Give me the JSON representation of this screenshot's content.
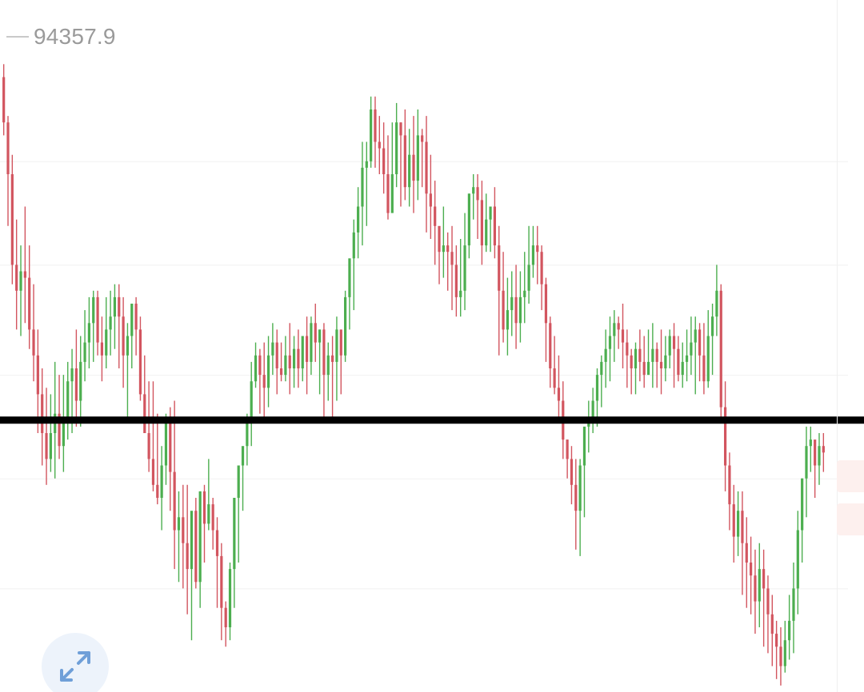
{
  "legend": {
    "value": "94357.9",
    "swatch_color": "#c9c9c9"
  },
  "colors": {
    "up": "#4cae4f",
    "down": "#d2555f",
    "grid": "#f1f1f1",
    "annotation_line": "#000000",
    "expand_button_bg": "#edf3fb",
    "expand_icon": "#6f9fd8"
  },
  "expand_button": {
    "icon": "expand-arrows-icon"
  },
  "chart_data": {
    "type": "candlestick",
    "title": "",
    "xlabel": "",
    "ylabel": "",
    "grid": true,
    "legend_position": "top-left",
    "ylim": [
      0,
      100
    ],
    "annotation": {
      "type": "horizontal-line",
      "y": 42
    },
    "candles": [
      [
        95,
        88,
        97,
        86
      ],
      [
        88,
        80,
        89,
        72
      ],
      [
        80,
        66,
        83,
        63
      ],
      [
        66,
        62,
        73,
        56
      ],
      [
        62,
        65,
        69,
        55
      ],
      [
        65,
        64,
        75,
        57
      ],
      [
        64,
        56,
        69,
        53
      ],
      [
        56,
        52,
        63,
        48
      ],
      [
        52,
        46,
        56,
        40
      ],
      [
        46,
        40,
        50,
        35
      ],
      [
        40,
        36,
        47,
        32
      ],
      [
        36,
        40,
        46,
        34
      ],
      [
        40,
        43,
        51,
        33
      ],
      [
        43,
        38,
        49,
        36
      ],
      [
        38,
        42,
        49,
        34
      ],
      [
        42,
        48,
        51,
        39
      ],
      [
        48,
        50,
        53,
        40
      ],
      [
        50,
        45,
        56,
        41
      ],
      [
        45,
        51,
        55,
        41
      ],
      [
        51,
        54,
        59,
        48
      ],
      [
        54,
        57,
        61,
        50
      ],
      [
        57,
        61,
        62,
        51
      ],
      [
        61,
        54,
        62,
        52
      ],
      [
        54,
        52,
        58,
        48
      ],
      [
        52,
        56,
        61,
        50
      ],
      [
        56,
        58,
        62,
        52
      ],
      [
        58,
        61,
        63,
        53
      ],
      [
        61,
        58,
        63,
        50
      ],
      [
        58,
        52,
        61,
        47
      ],
      [
        52,
        55,
        57,
        42
      ],
      [
        55,
        60,
        60,
        50
      ],
      [
        60,
        56,
        61,
        52
      ],
      [
        56,
        46,
        58,
        45
      ],
      [
        46,
        40,
        52,
        42
      ],
      [
        40,
        36,
        48,
        34
      ],
      [
        36,
        32,
        48,
        31
      ],
      [
        32,
        30,
        43,
        29
      ],
      [
        30,
        35,
        38,
        25
      ],
      [
        35,
        42,
        43,
        32
      ],
      [
        42,
        34,
        44,
        28
      ],
      [
        34,
        25,
        45,
        19
      ],
      [
        25,
        27,
        31,
        17
      ],
      [
        27,
        23,
        32,
        16
      ],
      [
        23,
        19,
        32,
        12
      ],
      [
        19,
        28,
        27,
        8
      ],
      [
        28,
        17,
        30,
        16
      ],
      [
        17,
        31,
        31,
        13
      ],
      [
        31,
        26,
        32,
        20
      ],
      [
        26,
        29,
        36,
        25
      ],
      [
        29,
        25,
        30,
        22
      ],
      [
        25,
        21,
        27,
        13
      ],
      [
        21,
        13,
        23,
        8
      ],
      [
        13,
        10,
        14,
        7
      ],
      [
        10,
        19,
        20,
        8
      ],
      [
        19,
        30,
        29,
        13
      ],
      [
        30,
        35,
        33,
        20
      ],
      [
        35,
        38,
        37,
        28
      ],
      [
        38,
        42,
        43,
        35
      ],
      [
        42,
        48,
        51,
        38
      ],
      [
        48,
        52,
        54,
        47
      ],
      [
        52,
        49,
        53,
        43
      ],
      [
        49,
        47,
        54,
        42
      ],
      [
        47,
        52,
        55,
        44
      ],
      [
        52,
        54,
        57,
        49
      ],
      [
        54,
        50,
        56,
        46
      ],
      [
        50,
        49,
        54,
        48
      ],
      [
        49,
        52,
        55,
        48
      ],
      [
        52,
        50,
        57,
        46
      ],
      [
        50,
        53,
        55,
        47
      ],
      [
        53,
        50,
        56,
        47
      ],
      [
        50,
        55,
        55,
        48
      ],
      [
        55,
        51,
        58,
        46
      ],
      [
        51,
        57,
        58,
        49
      ],
      [
        57,
        54,
        60,
        51
      ],
      [
        54,
        56,
        56,
        46
      ],
      [
        56,
        49,
        57,
        42
      ],
      [
        49,
        52,
        54,
        45
      ],
      [
        52,
        51,
        55,
        42
      ],
      [
        51,
        56,
        58,
        45
      ],
      [
        56,
        52,
        56,
        46
      ],
      [
        52,
        61,
        62,
        51
      ],
      [
        61,
        67,
        66,
        56
      ],
      [
        67,
        71,
        73,
        59
      ],
      [
        71,
        75,
        78,
        67
      ],
      [
        75,
        81,
        85,
        69
      ],
      [
        81,
        82,
        85,
        72
      ],
      [
        82,
        90,
        92,
        81
      ],
      [
        90,
        85,
        92,
        81
      ],
      [
        85,
        84,
        89,
        80
      ],
      [
        84,
        80,
        88,
        77
      ],
      [
        80,
        74,
        86,
        73
      ],
      [
        74,
        80,
        88,
        76
      ],
      [
        80,
        88,
        91,
        78
      ],
      [
        88,
        86,
        88,
        75
      ],
      [
        86,
        78,
        90,
        76
      ],
      [
        78,
        83,
        87,
        75
      ],
      [
        83,
        79,
        89,
        74
      ],
      [
        79,
        86,
        90,
        76
      ],
      [
        86,
        85,
        87,
        78
      ],
      [
        85,
        77,
        89,
        71
      ],
      [
        77,
        75,
        83,
        70
      ],
      [
        75,
        72,
        79,
        66
      ],
      [
        72,
        68,
        71,
        63
      ],
      [
        68,
        69,
        75,
        64
      ],
      [
        69,
        68,
        71,
        62
      ],
      [
        68,
        66,
        72,
        59
      ],
      [
        66,
        61,
        69,
        58
      ],
      [
        61,
        62,
        70,
        58
      ],
      [
        62,
        69,
        74,
        59
      ],
      [
        69,
        77,
        77,
        67
      ],
      [
        77,
        78,
        80,
        73
      ],
      [
        78,
        76,
        80,
        70
      ],
      [
        76,
        69,
        79,
        66
      ],
      [
        69,
        73,
        77,
        68
      ],
      [
        73,
        75,
        75,
        68
      ],
      [
        75,
        69,
        78,
        67
      ],
      [
        69,
        62,
        72,
        52
      ],
      [
        62,
        56,
        68,
        54
      ],
      [
        56,
        59,
        64,
        52
      ],
      [
        59,
        61,
        65,
        55
      ],
      [
        61,
        57,
        66,
        53
      ],
      [
        57,
        61,
        65,
        54
      ],
      [
        61,
        62,
        68,
        57
      ],
      [
        62,
        66,
        72,
        60
      ],
      [
        66,
        69,
        72,
        64
      ],
      [
        69,
        68,
        72,
        63
      ],
      [
        68,
        63,
        69,
        59
      ],
      [
        63,
        57,
        64,
        51
      ],
      [
        57,
        50,
        58,
        47
      ],
      [
        50,
        47,
        55,
        46
      ],
      [
        47,
        45,
        52,
        42
      ],
      [
        45,
        39,
        48,
        36
      ],
      [
        39,
        36,
        39,
        33
      ],
      [
        36,
        32,
        38,
        29
      ],
      [
        32,
        28,
        36,
        22
      ],
      [
        28,
        35,
        36,
        21
      ],
      [
        35,
        41,
        38,
        27
      ],
      [
        41,
        42,
        45,
        37
      ],
      [
        42,
        45,
        47,
        40
      ],
      [
        45,
        49,
        50,
        41
      ],
      [
        49,
        51,
        52,
        44
      ],
      [
        51,
        53,
        56,
        47
      ],
      [
        53,
        55,
        58,
        48
      ],
      [
        55,
        57,
        59,
        51
      ],
      [
        57,
        56,
        58,
        53
      ],
      [
        56,
        54,
        60,
        50
      ],
      [
        54,
        52,
        56,
        47
      ],
      [
        52,
        50,
        53,
        46
      ],
      [
        50,
        53,
        54,
        46
      ],
      [
        53,
        51,
        56,
        48
      ],
      [
        51,
        49,
        55,
        47
      ],
      [
        49,
        51,
        56,
        49
      ],
      [
        51,
        53,
        57,
        47
      ],
      [
        53,
        51,
        54,
        47
      ],
      [
        51,
        50,
        56,
        46
      ],
      [
        50,
        52,
        55,
        48
      ],
      [
        52,
        55,
        56,
        50
      ],
      [
        55,
        53,
        57,
        47
      ],
      [
        53,
        49,
        55,
        48
      ],
      [
        49,
        51,
        54,
        47
      ],
      [
        51,
        52,
        56,
        48
      ],
      [
        52,
        54,
        58,
        49
      ],
      [
        54,
        56,
        58,
        46
      ],
      [
        56,
        52,
        57,
        48
      ],
      [
        52,
        48,
        57,
        46
      ],
      [
        48,
        55,
        59,
        47
      ],
      [
        55,
        58,
        60,
        49
      ],
      [
        58,
        62,
        66,
        55
      ],
      [
        62,
        44,
        63,
        42
      ],
      [
        44,
        35,
        48,
        31
      ],
      [
        35,
        29,
        37,
        25
      ],
      [
        29,
        24,
        32,
        20
      ],
      [
        24,
        28,
        31,
        21
      ],
      [
        28,
        23,
        31,
        15
      ],
      [
        23,
        20,
        27,
        13
      ],
      [
        20,
        18,
        24,
        12
      ],
      [
        18,
        14,
        22,
        9
      ],
      [
        14,
        19,
        23,
        10
      ],
      [
        19,
        16,
        22,
        7
      ],
      [
        16,
        12,
        18,
        6
      ],
      [
        12,
        9,
        15,
        4
      ],
      [
        9,
        7,
        11,
        2
      ],
      [
        7,
        4,
        10,
        1
      ],
      [
        4,
        8,
        11,
        3
      ],
      [
        8,
        11,
        15,
        5
      ],
      [
        11,
        16,
        20,
        6
      ],
      [
        16,
        25,
        28,
        12
      ],
      [
        25,
        33,
        33,
        20
      ],
      [
        33,
        38,
        41,
        27
      ],
      [
        38,
        39,
        41,
        34
      ],
      [
        39,
        35,
        38,
        30
      ],
      [
        35,
        38,
        40,
        32
      ],
      [
        38,
        37,
        40,
        34
      ]
    ]
  }
}
